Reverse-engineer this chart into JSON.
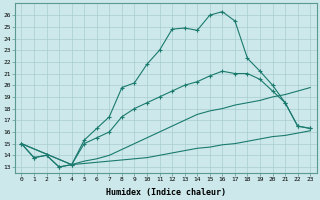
{
  "xlabel": "Humidex (Indice chaleur)",
  "background_color": "#cce8ea",
  "grid_color": "#aacdd0",
  "line_color": "#1a7a6e",
  "xlim": [
    -0.5,
    23.5
  ],
  "ylim": [
    12.5,
    27.0
  ],
  "xticks": [
    0,
    1,
    2,
    3,
    4,
    5,
    6,
    7,
    8,
    9,
    10,
    11,
    12,
    13,
    14,
    15,
    16,
    17,
    18,
    19,
    20,
    21,
    22,
    23
  ],
  "yticks": [
    13,
    14,
    15,
    16,
    17,
    18,
    19,
    20,
    21,
    22,
    23,
    24,
    25,
    26
  ],
  "curve1_x": [
    0,
    1,
    2,
    3,
    4,
    5,
    6,
    7,
    8,
    9,
    10,
    11,
    12,
    13,
    14,
    15,
    16,
    17,
    18,
    19,
    20,
    21,
    22,
    23
  ],
  "curve1_y": [
    15.0,
    13.8,
    14.0,
    13.0,
    13.2,
    15.3,
    16.3,
    17.3,
    19.8,
    20.2,
    21.8,
    23.0,
    24.8,
    24.9,
    24.7,
    26.0,
    26.3,
    25.5,
    22.3,
    21.2,
    20.0,
    18.5,
    16.5,
    16.3
  ],
  "curve2_x": [
    0,
    1,
    2,
    3,
    4,
    5,
    6,
    7,
    8,
    9,
    10,
    11,
    12,
    13,
    14,
    15,
    16,
    17,
    18,
    19,
    20,
    21,
    22,
    23
  ],
  "curve2_y": [
    15.0,
    13.8,
    14.0,
    13.0,
    13.2,
    15.0,
    15.5,
    16.0,
    17.3,
    18.0,
    18.5,
    19.0,
    19.5,
    20.0,
    20.3,
    20.8,
    21.2,
    21.0,
    21.0,
    20.5,
    19.5,
    18.5,
    16.5,
    16.3
  ],
  "curve3_x": [
    0,
    4,
    5,
    6,
    7,
    8,
    9,
    10,
    11,
    12,
    13,
    14,
    15,
    16,
    17,
    18,
    19,
    20,
    21,
    22,
    23
  ],
  "curve3_y": [
    15.0,
    13.2,
    13.5,
    13.7,
    14.0,
    14.5,
    15.0,
    15.5,
    16.0,
    16.5,
    17.0,
    17.5,
    17.8,
    18.0,
    18.3,
    18.5,
    18.7,
    19.0,
    19.2,
    19.5,
    19.8
  ],
  "curve4_x": [
    0,
    4,
    5,
    6,
    7,
    8,
    9,
    10,
    11,
    12,
    13,
    14,
    15,
    16,
    17,
    18,
    19,
    20,
    21,
    22,
    23
  ],
  "curve4_y": [
    15.0,
    13.2,
    13.3,
    13.4,
    13.5,
    13.6,
    13.7,
    13.8,
    14.0,
    14.2,
    14.4,
    14.6,
    14.7,
    14.9,
    15.0,
    15.2,
    15.4,
    15.6,
    15.7,
    15.9,
    16.1
  ]
}
